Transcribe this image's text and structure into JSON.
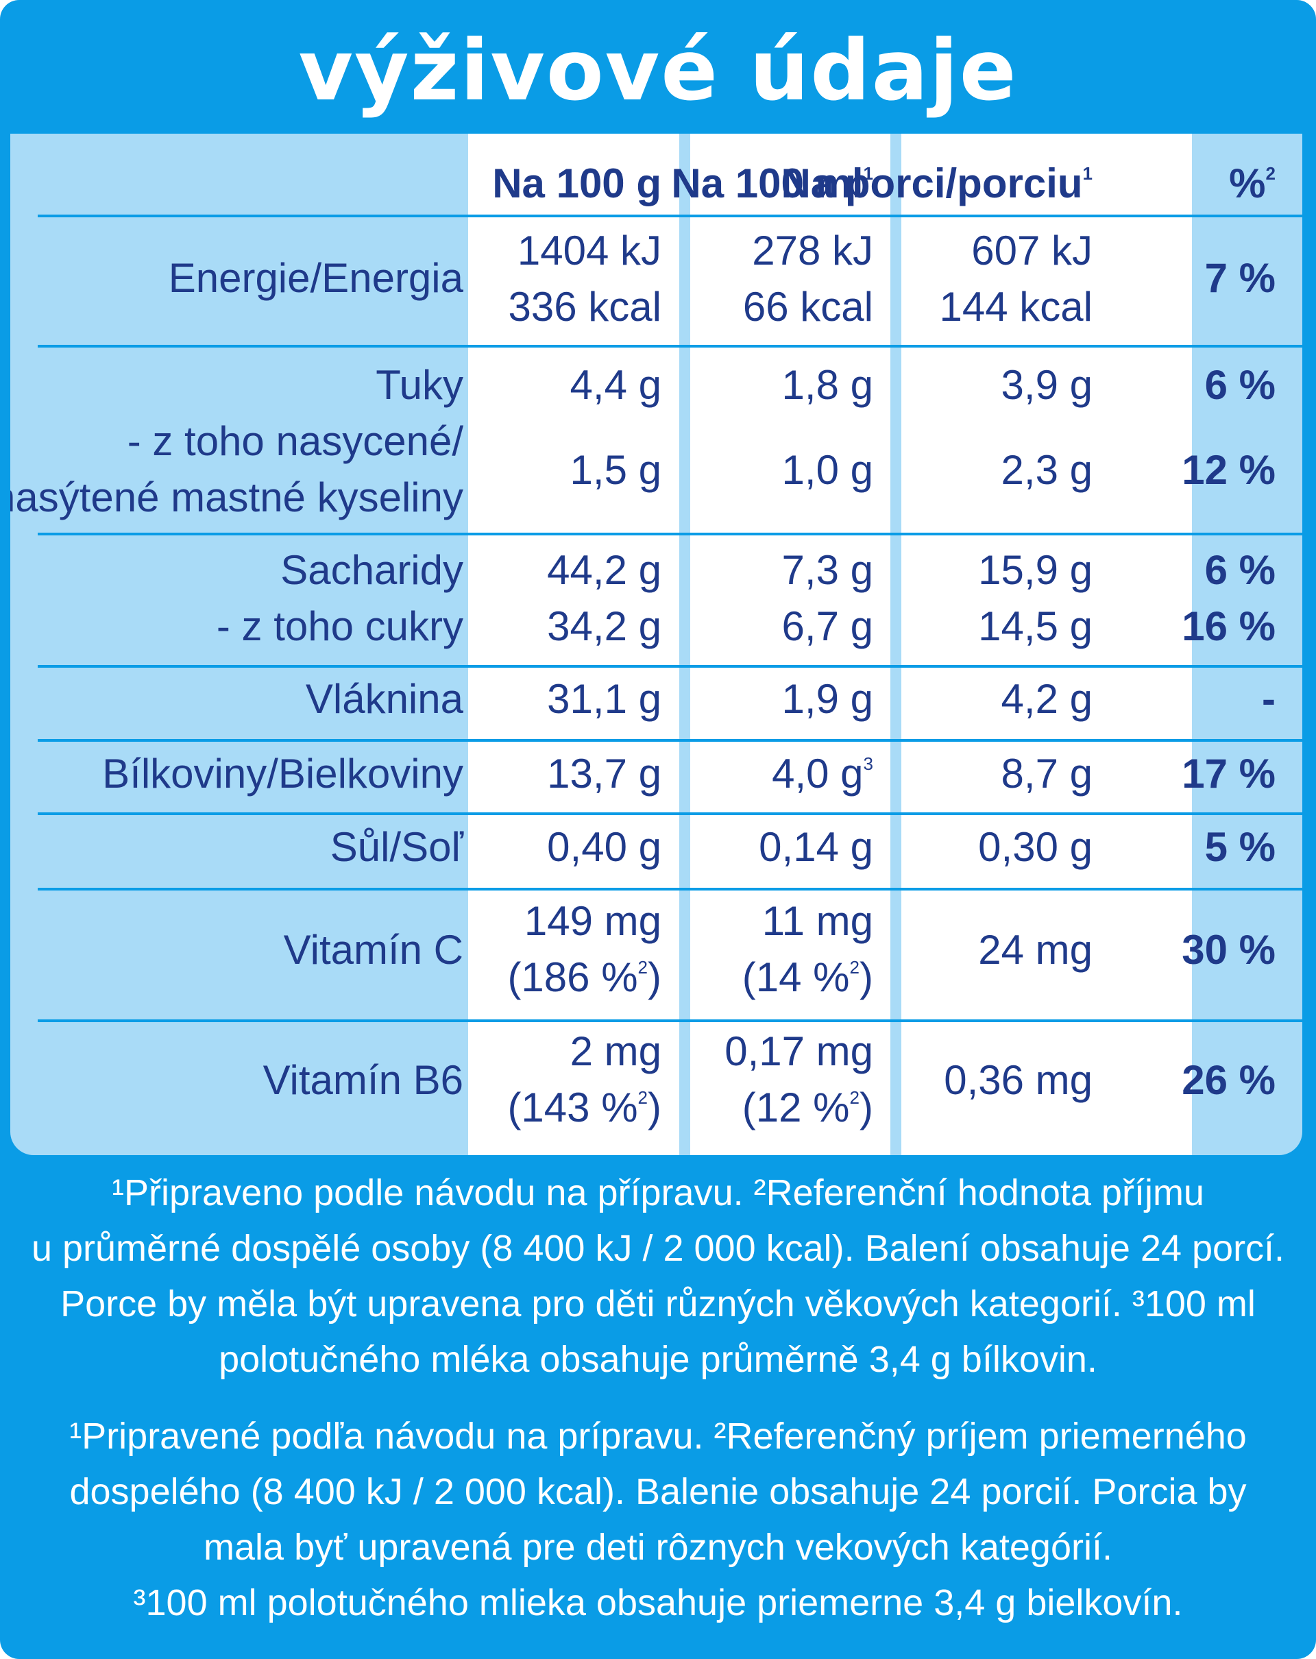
{
  "title": "výživové údaje",
  "header": {
    "col_100g": "Na 100 g",
    "col_100ml": "Na 100 ml",
    "col_100ml_sup": "1",
    "col_porce": "Na porci/porciu",
    "col_porce_sup": "1",
    "col_pct": "%",
    "col_pct_sup": "2"
  },
  "rows": {
    "energy": {
      "label": "Energie/Energia",
      "g100_kj": "1404 kJ",
      "g100_kcal": "336 kcal",
      "ml100_kj": "278 kJ",
      "ml100_kcal": "66 kcal",
      "porce_kj": "607 kJ",
      "porce_kcal": "144 kcal",
      "pct": "7 %"
    },
    "fat": {
      "label": "Tuky",
      "g100": "4,4 g",
      "ml100": "1,8 g",
      "porce": "3,9 g",
      "pct": "6 %"
    },
    "saturated": {
      "label_line1": "- z toho nasycené/",
      "label_line2": "nasýtené mastné kyseliny",
      "g100": "1,5 g",
      "ml100": "1,0 g",
      "porce": "2,3 g",
      "pct": "12 %"
    },
    "carbs": {
      "label": "Sacharidy",
      "g100": "44,2 g",
      "ml100": "7,3 g",
      "porce": "15,9 g",
      "pct": "6 %"
    },
    "sugars": {
      "label": "- z toho cukry",
      "g100": "34,2 g",
      "ml100": "6,7 g",
      "porce": "14,5 g",
      "pct": "16 %"
    },
    "fiber": {
      "label": "Vláknina",
      "g100": "31,1 g",
      "ml100": "1,9 g",
      "porce": "4,2 g",
      "pct": "-"
    },
    "protein": {
      "label": "Bílkoviny/Bielkoviny",
      "g100": "13,7 g",
      "ml100": "4,0 g",
      "ml100_sup": "3",
      "porce": "8,7 g",
      "pct": "17 %"
    },
    "salt": {
      "label": "Sůl/Soľ",
      "g100": "0,40 g",
      "ml100": "0,14 g",
      "porce": "0,30 g",
      "pct": "5 %"
    },
    "vitc": {
      "label": "Vitamín C",
      "g100": "149 mg",
      "g100_ri": "(186 %",
      "g100_ri_sup": "2",
      "g100_ri_close": ")",
      "ml100": "11 mg",
      "ml100_ri": "(14 %",
      "ml100_ri_sup": "2",
      "ml100_ri_close": ")",
      "porce": "24 mg",
      "pct": "30 %"
    },
    "vitb6": {
      "label": "Vitamín B6",
      "g100": "2 mg",
      "g100_ri": "(143 %",
      "g100_ri_sup": "2",
      "g100_ri_close": ")",
      "ml100": "0,17 mg",
      "ml100_ri": "(12 %",
      "ml100_ri_sup": "2",
      "ml100_ri_close": ")",
      "porce": "0,36 mg",
      "pct": "26 %"
    }
  },
  "notes_cz": [
    "¹Připraveno podle návodu na přípravu. ²Referenční hodnota příjmu",
    "u průměrné dospělé osoby (8 400 kJ / 2 000 kcal). Balení obsahuje 24 porcí.",
    "Porce by měla být upravena pro děti různých věkových kategorií. ³100 ml",
    "polotučného mléka obsahuje průměrně 3,4 g bílkovin."
  ],
  "notes_sk": [
    "¹Pripravené podľa návodu na prípravu. ²Referenčný príjem priemerného",
    "dospelého (8 400 kJ / 2 000 kcal). Balenie obsahuje 24 porcií. Porcia by",
    "mala byť upravená pre deti rôznych vekových kategórií.",
    "³100 ml polotučného mlieka obsahuje priemerne 3,4 g bielkovín."
  ],
  "colors": {
    "label_blue": "#0a9ce6",
    "table_bg": "#a9dbf7",
    "column_bg": "#ffffff",
    "text_navy": "#1f3a8a"
  }
}
